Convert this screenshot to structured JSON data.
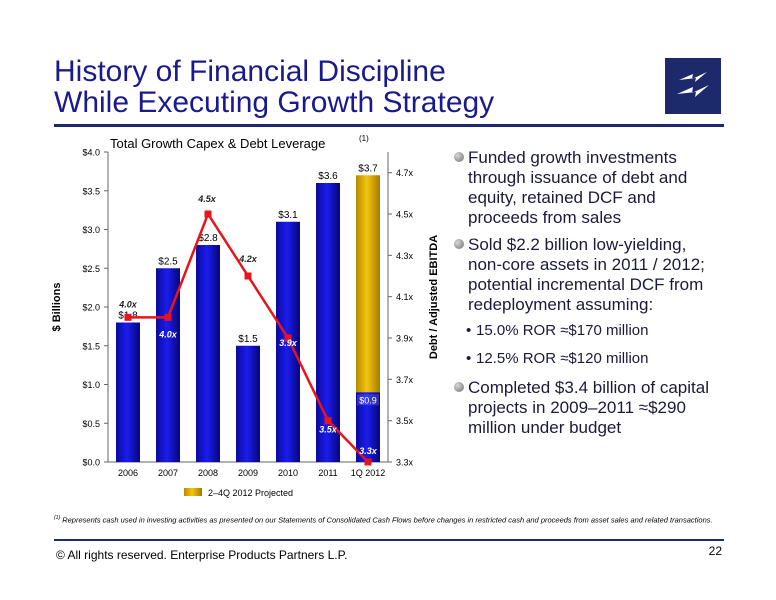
{
  "slide": {
    "title_line1": "History of Financial Discipline",
    "title_line2": "While Executing Growth Strategy",
    "chart_heading": "Total Growth Capex & Debt Leverage",
    "chart_heading_note": "(1)",
    "bullets": [
      {
        "text": "Funded growth investments through issuance of debt and equity, retained DCF and proceeds from sales"
      },
      {
        "text": "Sold $2.2 billion low-yielding, non-core assets in 2011 / 2012; potential incremental DCF from redeployment assuming:"
      },
      {
        "text": "Completed $3.4 billion of capital projects in 2009–2011 ≈$290 million under budget"
      }
    ],
    "sub_bullets": [
      {
        "text": "15.0% ROR ≈$170 million"
      },
      {
        "text": "12.5% ROR ≈$120 million"
      }
    ],
    "footnote_marker": "(1)",
    "footnote": "Represents cash used in investing activities as presented on our Statements of Consolidated Cash Flows before changes in restricted cash and proceeds from asset sales and related transactions.",
    "copyright": "©  All rights reserved. Enterprise Products Partners L.P.",
    "page_number": "22"
  },
  "chart_data": {
    "type": "bar",
    "categories": [
      "2006",
      "2007",
      "2008",
      "2009",
      "2010",
      "2011",
      "1Q 2012"
    ],
    "series": [
      {
        "values": [
          1.8,
          2.5,
          2.8,
          1.5,
          3.1,
          3.6,
          0.9
        ],
        "color": "#1010cc"
      },
      {
        "name": "2–4Q 2012 Projected",
        "values": [
          0,
          0,
          0,
          0,
          0,
          0,
          2.8
        ],
        "color": "#e0b000"
      }
    ],
    "bar_labels": [
      "$1.8",
      "$2.5",
      "$2.8",
      "$1.5",
      "$3.1",
      "$3.6",
      "$3.7"
    ],
    "q1_label": "$0.9",
    "leverage": {
      "values": [
        4.0,
        4.0,
        4.5,
        4.2,
        3.9,
        3.5,
        3.3
      ],
      "labels": [
        "4.0x",
        "4.0x",
        "4.5x",
        "4.2x",
        "3.9x",
        "3.5x",
        "3.3x"
      ],
      "color": "#e8141c"
    },
    "ylabel": "$ Billions",
    "y2label": "Debt / Adjusted EBITDA",
    "ylim": [
      0,
      4.0
    ],
    "y_ticks": [
      "$0.0",
      "$0.5",
      "$1.0",
      "$1.5",
      "$2.0",
      "$2.5",
      "$3.0",
      "$3.5",
      "$4.0"
    ],
    "y2lim": [
      3.3,
      4.8
    ],
    "y2_ticks": [
      "3.3x",
      "3.5x",
      "3.7x",
      "3.9x",
      "4.1x",
      "4.3x",
      "4.5x",
      "4.7x"
    ],
    "legend": "bottom-center",
    "grid": false
  }
}
